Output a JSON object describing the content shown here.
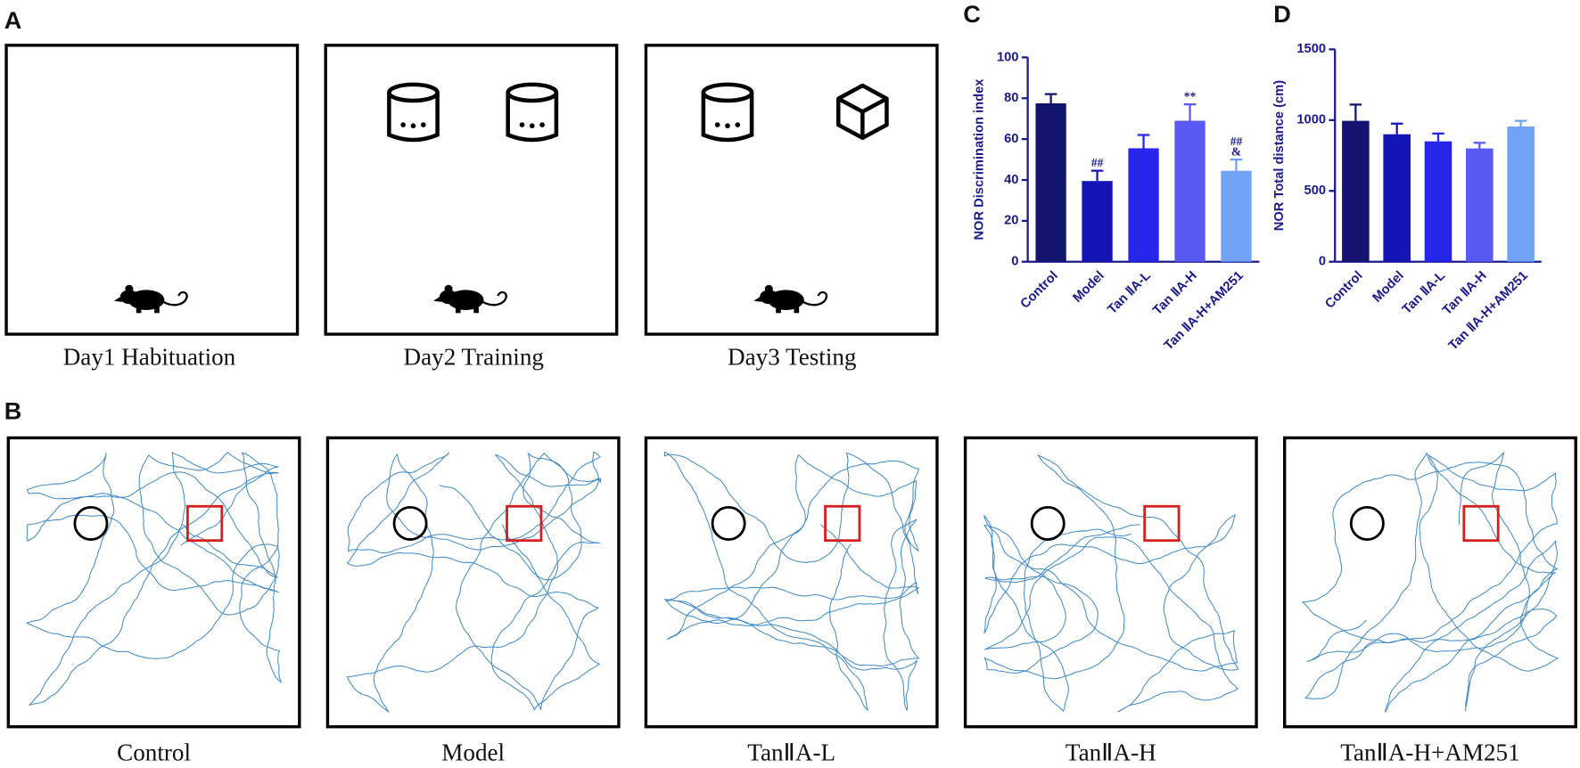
{
  "panel_labels": [
    "A",
    "B",
    "C",
    "D"
  ],
  "protocol": {
    "captions": [
      "Day1 Habituation",
      "Day2 Training",
      "Day3 Testing"
    ]
  },
  "tracks": {
    "captions": [
      "Control",
      "Model",
      "TanⅡA-L",
      "TanⅡA-H",
      "TanⅡA-H+AM251"
    ]
  },
  "chart_data": [
    {
      "type": "bar",
      "y_label": "NOR Discrimination index",
      "categories": [
        "Control",
        "Model",
        "Tan  ⅡA-L",
        "Tan  ⅡA-H",
        "Tan  ⅡA-H+AM251"
      ],
      "values": [
        77.5,
        39.5,
        55.5,
        69,
        44.5
      ],
      "errors": [
        4.5,
        5,
        6.5,
        8,
        5.5
      ],
      "colors": [
        "#14146e",
        "#1414b4",
        "#2626ea",
        "#5a5af2",
        "#70a2f6"
      ],
      "annotations": [
        [],
        [
          "##"
        ],
        [],
        [
          "**"
        ],
        [
          "##",
          "&"
        ]
      ],
      "ylim": [
        0,
        100
      ],
      "yticks": [
        0,
        20,
        40,
        60,
        80,
        100
      ]
    },
    {
      "type": "bar",
      "y_label": "NOR Total distance (cm)",
      "categories": [
        "Control",
        "Model",
        "Tan  ⅡA-L",
        "Tan  ⅡA-H",
        "Tan  ⅡA-H+AM251"
      ],
      "values": [
        995,
        900,
        850,
        800,
        955
      ],
      "errors": [
        115,
        75,
        55,
        40,
        40
      ],
      "colors": [
        "#14146e",
        "#1414b4",
        "#2626ea",
        "#5a5af2",
        "#70a2f6"
      ],
      "annotations": [
        [],
        [],
        [],
        [],
        []
      ],
      "ylim": [
        0,
        1500
      ],
      "yticks": [
        0,
        500,
        1000,
        1500
      ]
    }
  ]
}
